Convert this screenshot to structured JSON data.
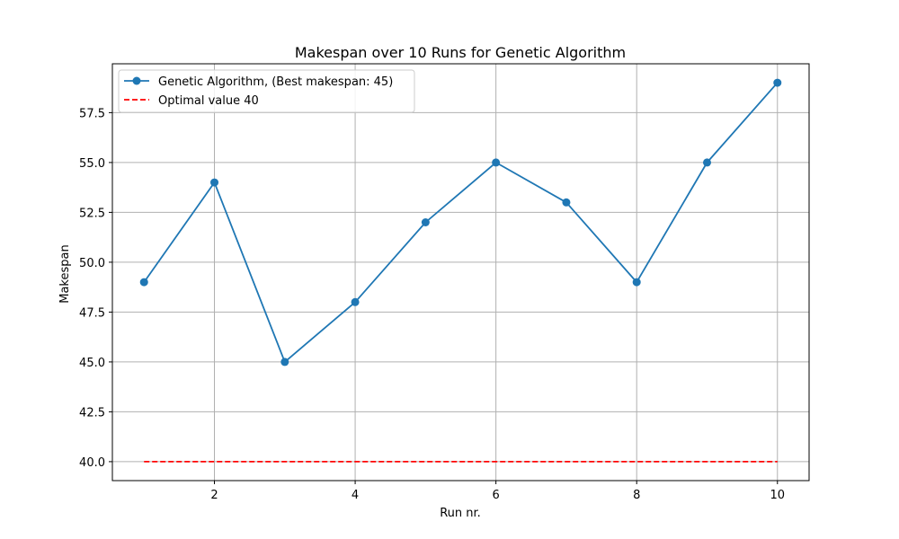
{
  "chart_data": {
    "type": "line",
    "title": "Makespan over 10 Runs for Genetic Algorithm",
    "xlabel": "Run nr.",
    "ylabel": "Makespan",
    "xlim": [
      0.55,
      10.45
    ],
    "ylim": [
      39.05,
      59.95
    ],
    "xticks": [
      2,
      4,
      6,
      8,
      10
    ],
    "xtick_labels": [
      "2",
      "4",
      "6",
      "8",
      "10"
    ],
    "yticks": [
      40.0,
      42.5,
      45.0,
      47.5,
      50.0,
      52.5,
      55.0,
      57.5
    ],
    "ytick_labels": [
      "40.0",
      "42.5",
      "45.0",
      "47.5",
      "50.0",
      "52.5",
      "55.0",
      "57.5"
    ],
    "grid": true,
    "legend_position": "top-left",
    "series": [
      {
        "name": "Genetic Algorithm, (Best makespan: 45)",
        "style": "solid-with-markers",
        "color": "#1f77b4",
        "x": [
          1,
          2,
          3,
          4,
          5,
          6,
          7,
          8,
          9,
          10
        ],
        "values": [
          49,
          54,
          45,
          48,
          52,
          55,
          53,
          49,
          55,
          59
        ]
      },
      {
        "name": "Optimal value 40",
        "style": "dashed",
        "color": "#ff0000",
        "x": [
          1,
          10
        ],
        "values": [
          40,
          40
        ]
      }
    ]
  }
}
